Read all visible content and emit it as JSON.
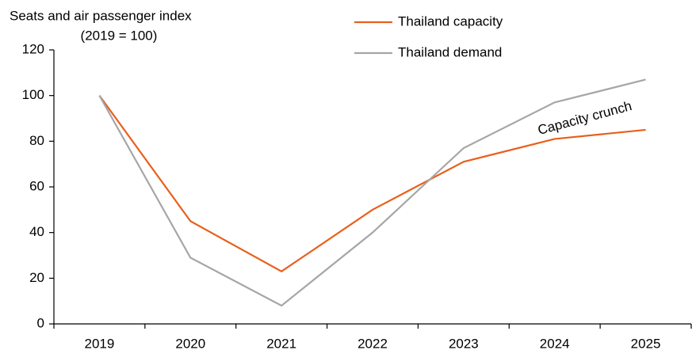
{
  "chart_data": {
    "type": "line",
    "title": "Seats and air passenger index",
    "subtitle": "(2019 = 100)",
    "categories": [
      "2019",
      "2020",
      "2021",
      "2022",
      "2023",
      "2024",
      "2025"
    ],
    "series": [
      {
        "name": "Thailand capacity",
        "color": "#e8601c",
        "values": [
          100,
          45,
          23,
          50,
          71,
          81,
          85
        ]
      },
      {
        "name": "Thailand demand",
        "color": "#a6a6a6",
        "values": [
          100,
          29,
          8,
          40,
          77,
          97,
          107
        ]
      }
    ],
    "annotation": "Capacity crunch",
    "ylim": [
      0,
      120
    ],
    "yticks": [
      0,
      20,
      40,
      60,
      80,
      100,
      120
    ],
    "grid": false
  }
}
